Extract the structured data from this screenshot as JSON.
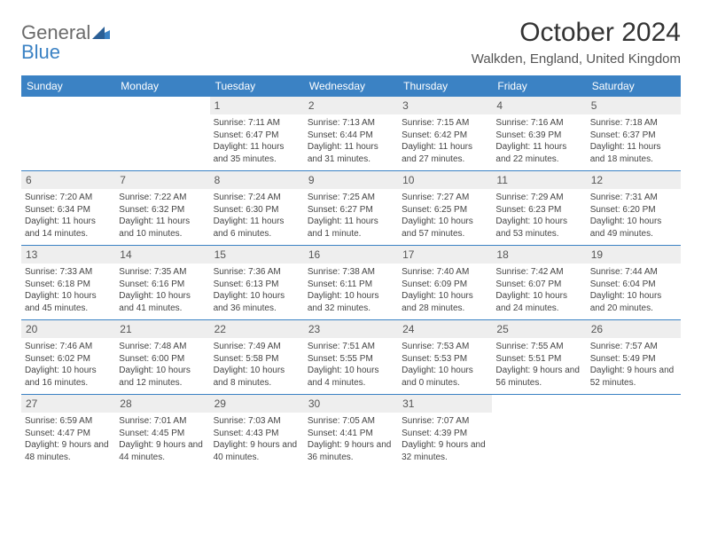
{
  "logo": {
    "gray": "General",
    "blue": "Blue"
  },
  "title": "October 2024",
  "location": "Walkden, England, United Kingdom",
  "header_bg": "#3b82c4",
  "daynames": [
    "Sunday",
    "Monday",
    "Tuesday",
    "Wednesday",
    "Thursday",
    "Friday",
    "Saturday"
  ],
  "weeks": [
    [
      null,
      null,
      {
        "n": "1",
        "sr": "Sunrise: 7:11 AM",
        "ss": "Sunset: 6:47 PM",
        "dl": "Daylight: 11 hours and 35 minutes."
      },
      {
        "n": "2",
        "sr": "Sunrise: 7:13 AM",
        "ss": "Sunset: 6:44 PM",
        "dl": "Daylight: 11 hours and 31 minutes."
      },
      {
        "n": "3",
        "sr": "Sunrise: 7:15 AM",
        "ss": "Sunset: 6:42 PM",
        "dl": "Daylight: 11 hours and 27 minutes."
      },
      {
        "n": "4",
        "sr": "Sunrise: 7:16 AM",
        "ss": "Sunset: 6:39 PM",
        "dl": "Daylight: 11 hours and 22 minutes."
      },
      {
        "n": "5",
        "sr": "Sunrise: 7:18 AM",
        "ss": "Sunset: 6:37 PM",
        "dl": "Daylight: 11 hours and 18 minutes."
      }
    ],
    [
      {
        "n": "6",
        "sr": "Sunrise: 7:20 AM",
        "ss": "Sunset: 6:34 PM",
        "dl": "Daylight: 11 hours and 14 minutes."
      },
      {
        "n": "7",
        "sr": "Sunrise: 7:22 AM",
        "ss": "Sunset: 6:32 PM",
        "dl": "Daylight: 11 hours and 10 minutes."
      },
      {
        "n": "8",
        "sr": "Sunrise: 7:24 AM",
        "ss": "Sunset: 6:30 PM",
        "dl": "Daylight: 11 hours and 6 minutes."
      },
      {
        "n": "9",
        "sr": "Sunrise: 7:25 AM",
        "ss": "Sunset: 6:27 PM",
        "dl": "Daylight: 11 hours and 1 minute."
      },
      {
        "n": "10",
        "sr": "Sunrise: 7:27 AM",
        "ss": "Sunset: 6:25 PM",
        "dl": "Daylight: 10 hours and 57 minutes."
      },
      {
        "n": "11",
        "sr": "Sunrise: 7:29 AM",
        "ss": "Sunset: 6:23 PM",
        "dl": "Daylight: 10 hours and 53 minutes."
      },
      {
        "n": "12",
        "sr": "Sunrise: 7:31 AM",
        "ss": "Sunset: 6:20 PM",
        "dl": "Daylight: 10 hours and 49 minutes."
      }
    ],
    [
      {
        "n": "13",
        "sr": "Sunrise: 7:33 AM",
        "ss": "Sunset: 6:18 PM",
        "dl": "Daylight: 10 hours and 45 minutes."
      },
      {
        "n": "14",
        "sr": "Sunrise: 7:35 AM",
        "ss": "Sunset: 6:16 PM",
        "dl": "Daylight: 10 hours and 41 minutes."
      },
      {
        "n": "15",
        "sr": "Sunrise: 7:36 AM",
        "ss": "Sunset: 6:13 PM",
        "dl": "Daylight: 10 hours and 36 minutes."
      },
      {
        "n": "16",
        "sr": "Sunrise: 7:38 AM",
        "ss": "Sunset: 6:11 PM",
        "dl": "Daylight: 10 hours and 32 minutes."
      },
      {
        "n": "17",
        "sr": "Sunrise: 7:40 AM",
        "ss": "Sunset: 6:09 PM",
        "dl": "Daylight: 10 hours and 28 minutes."
      },
      {
        "n": "18",
        "sr": "Sunrise: 7:42 AM",
        "ss": "Sunset: 6:07 PM",
        "dl": "Daylight: 10 hours and 24 minutes."
      },
      {
        "n": "19",
        "sr": "Sunrise: 7:44 AM",
        "ss": "Sunset: 6:04 PM",
        "dl": "Daylight: 10 hours and 20 minutes."
      }
    ],
    [
      {
        "n": "20",
        "sr": "Sunrise: 7:46 AM",
        "ss": "Sunset: 6:02 PM",
        "dl": "Daylight: 10 hours and 16 minutes."
      },
      {
        "n": "21",
        "sr": "Sunrise: 7:48 AM",
        "ss": "Sunset: 6:00 PM",
        "dl": "Daylight: 10 hours and 12 minutes."
      },
      {
        "n": "22",
        "sr": "Sunrise: 7:49 AM",
        "ss": "Sunset: 5:58 PM",
        "dl": "Daylight: 10 hours and 8 minutes."
      },
      {
        "n": "23",
        "sr": "Sunrise: 7:51 AM",
        "ss": "Sunset: 5:55 PM",
        "dl": "Daylight: 10 hours and 4 minutes."
      },
      {
        "n": "24",
        "sr": "Sunrise: 7:53 AM",
        "ss": "Sunset: 5:53 PM",
        "dl": "Daylight: 10 hours and 0 minutes."
      },
      {
        "n": "25",
        "sr": "Sunrise: 7:55 AM",
        "ss": "Sunset: 5:51 PM",
        "dl": "Daylight: 9 hours and 56 minutes."
      },
      {
        "n": "26",
        "sr": "Sunrise: 7:57 AM",
        "ss": "Sunset: 5:49 PM",
        "dl": "Daylight: 9 hours and 52 minutes."
      }
    ],
    [
      {
        "n": "27",
        "sr": "Sunrise: 6:59 AM",
        "ss": "Sunset: 4:47 PM",
        "dl": "Daylight: 9 hours and 48 minutes."
      },
      {
        "n": "28",
        "sr": "Sunrise: 7:01 AM",
        "ss": "Sunset: 4:45 PM",
        "dl": "Daylight: 9 hours and 44 minutes."
      },
      {
        "n": "29",
        "sr": "Sunrise: 7:03 AM",
        "ss": "Sunset: 4:43 PM",
        "dl": "Daylight: 9 hours and 40 minutes."
      },
      {
        "n": "30",
        "sr": "Sunrise: 7:05 AM",
        "ss": "Sunset: 4:41 PM",
        "dl": "Daylight: 9 hours and 36 minutes."
      },
      {
        "n": "31",
        "sr": "Sunrise: 7:07 AM",
        "ss": "Sunset: 4:39 PM",
        "dl": "Daylight: 9 hours and 32 minutes."
      },
      null,
      null
    ]
  ]
}
